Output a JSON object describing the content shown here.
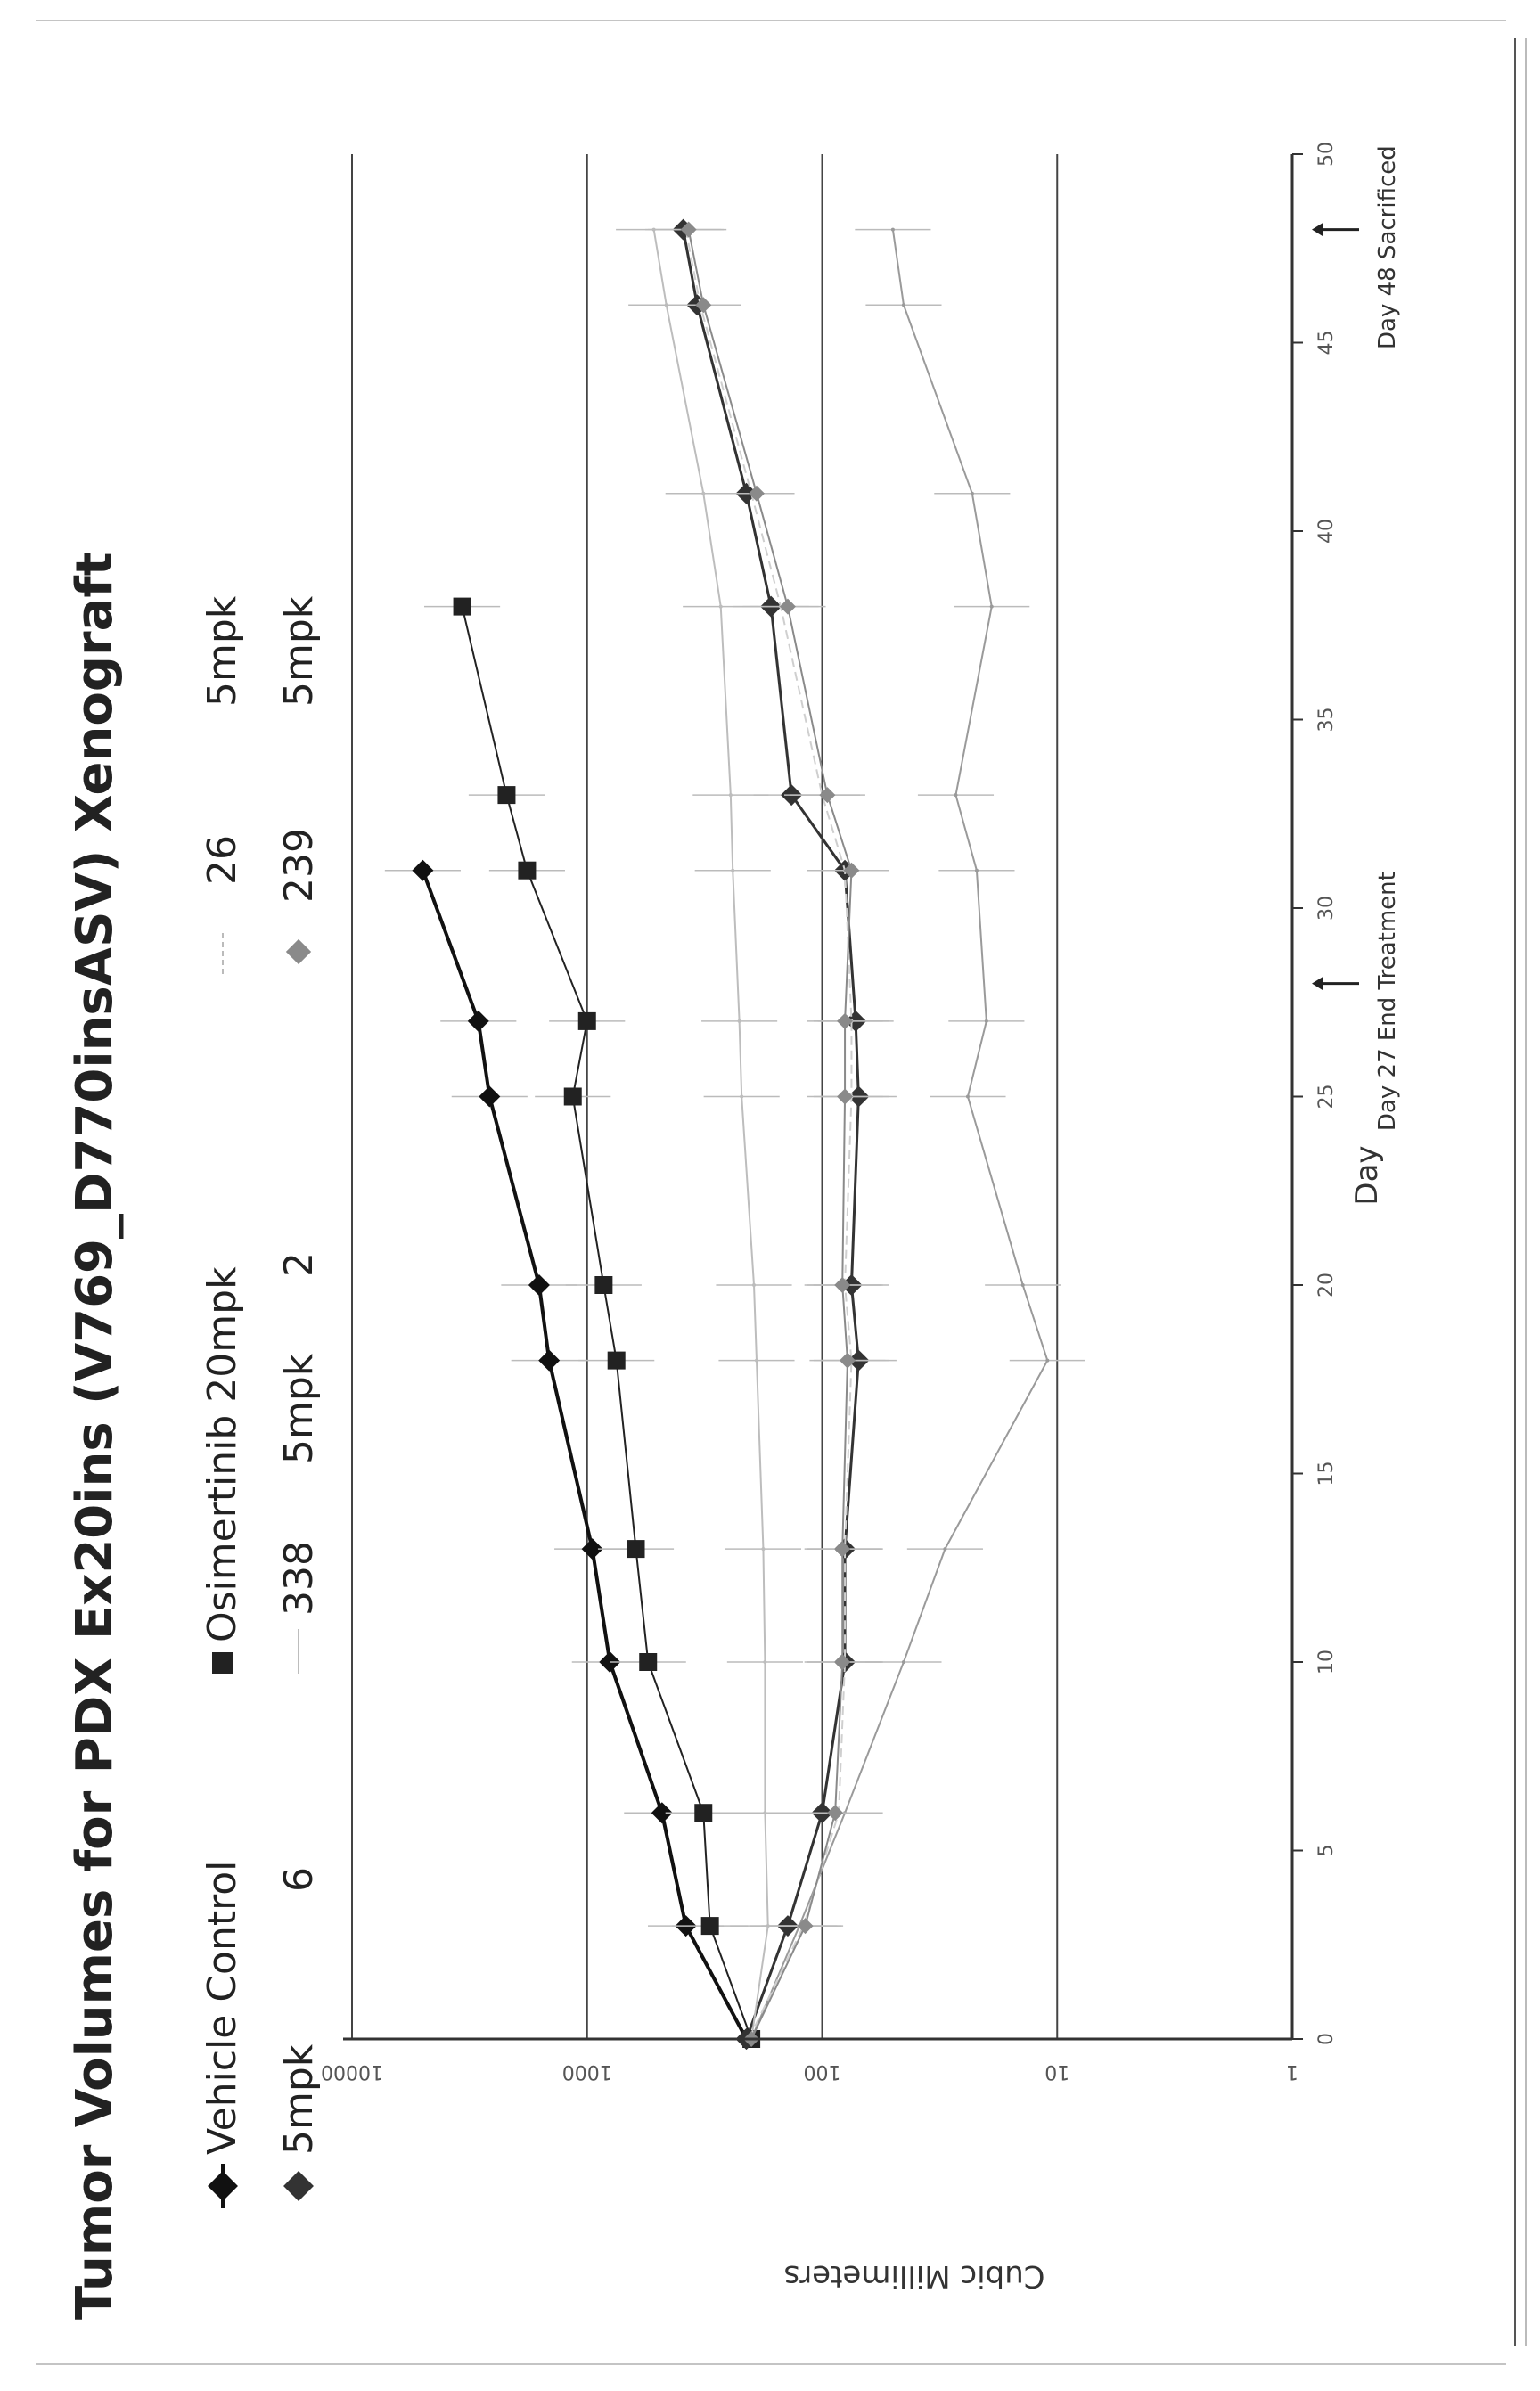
{
  "chart_data": {
    "type": "line",
    "title": "Tumor Volumes for PDX Ex20ins (V769_D770insASV) Xenograft",
    "xlabel": "Day",
    "ylabel": "Cubic Millimeters",
    "xlim": [
      0,
      50
    ],
    "ylim": [
      1,
      10000
    ],
    "yscale": "log",
    "grid": "horizontal",
    "legend_position": "top",
    "x_ticks": [
      "0",
      "5",
      "10",
      "15",
      "20",
      "25",
      "30",
      "35",
      "40",
      "45",
      "50"
    ],
    "y_ticks": [
      "1",
      "10",
      "100",
      "1000",
      "10000"
    ],
    "series": [
      {
        "name": "Vehicle Control",
        "color": "#111111",
        "marker": "diamond",
        "line_width": 4,
        "dashed": false,
        "x": [
          0,
          3,
          6,
          10,
          13,
          18,
          20,
          25,
          27,
          31
        ],
        "y": [
          210,
          380,
          480,
          800,
          950,
          1450,
          1600,
          2600,
          2900,
          5000
        ]
      },
      {
        "name": "Osimertinib 20mpk",
        "color": "#222222",
        "marker": "square",
        "line_width": 2,
        "dashed": false,
        "x": [
          0,
          3,
          6,
          10,
          13,
          18,
          20,
          25,
          27,
          31,
          33,
          38
        ],
        "y": [
          200,
          300,
          320,
          550,
          620,
          750,
          850,
          1150,
          1000,
          1800,
          2200,
          3400
        ]
      },
      {
        "name": "5mpk 6",
        "color": "#333333",
        "marker": "diamond",
        "line_width": 3,
        "dashed": false,
        "x": [
          0,
          3,
          6,
          10,
          13,
          18,
          20,
          25,
          27,
          31,
          33,
          38,
          41,
          46,
          48
        ],
        "y": [
          210,
          140,
          100,
          80,
          80,
          70,
          75,
          70,
          72,
          80,
          135,
          165,
          210,
          340,
          390
        ]
      },
      {
        "name": "5mpk 338",
        "color": "#bdbdbd",
        "marker": "none",
        "line_width": 2,
        "dashed": false,
        "x": [
          0,
          3,
          6,
          10,
          13,
          18,
          20,
          25,
          27,
          31,
          33,
          38,
          41,
          46,
          48
        ],
        "y": [
          200,
          170,
          175,
          175,
          178,
          190,
          195,
          220,
          225,
          240,
          245,
          270,
          320,
          460,
          520
        ]
      },
      {
        "name": "5mpk 2",
        "color": "#9a9a9a",
        "marker": "none",
        "line_width": 2,
        "dashed": false,
        "x": [
          0,
          3,
          6,
          10,
          13,
          18,
          20,
          25,
          27,
          31,
          33,
          38,
          41,
          46,
          48
        ],
        "y": [
          200,
          125,
          80,
          45,
          30,
          11,
          14,
          24,
          20,
          22,
          27,
          19,
          23,
          45,
          50
        ]
      },
      {
        "name": "5mpk 26",
        "color": "#cfcfcf",
        "marker": "none",
        "line_width": 2,
        "dashed": true,
        "x": [
          0,
          3,
          6,
          10,
          13,
          18,
          20,
          25,
          27,
          31,
          33,
          38,
          41,
          46,
          48
        ],
        "y": [
          205,
          120,
          85,
          80,
          80,
          75,
          80,
          75,
          75,
          80,
          100,
          150,
          200,
          330,
          380
        ]
      },
      {
        "name": "5mpk 239",
        "color": "#8a8a8a",
        "marker": "diamond",
        "line_width": 2,
        "dashed": false,
        "x": [
          0,
          3,
          6,
          10,
          13,
          18,
          20,
          25,
          27,
          31,
          33,
          38,
          41,
          46,
          48
        ],
        "y": [
          200,
          118,
          88,
          82,
          82,
          78,
          82,
          80,
          80,
          75,
          95,
          140,
          190,
          320,
          370
        ]
      }
    ],
    "legend": {
      "row1": [
        "Vehicle Control",
        "Osimertinib 20mpk",
        "26",
        "5mpk"
      ],
      "row2": [
        "5mpk",
        "6",
        "338",
        "5mpk",
        "2",
        "239",
        "5mpk"
      ]
    },
    "annotations": [
      {
        "text": "Day 27 End Treatment",
        "x": 28
      },
      {
        "text": "Day 48 Sacrificed",
        "x": 48
      }
    ]
  }
}
